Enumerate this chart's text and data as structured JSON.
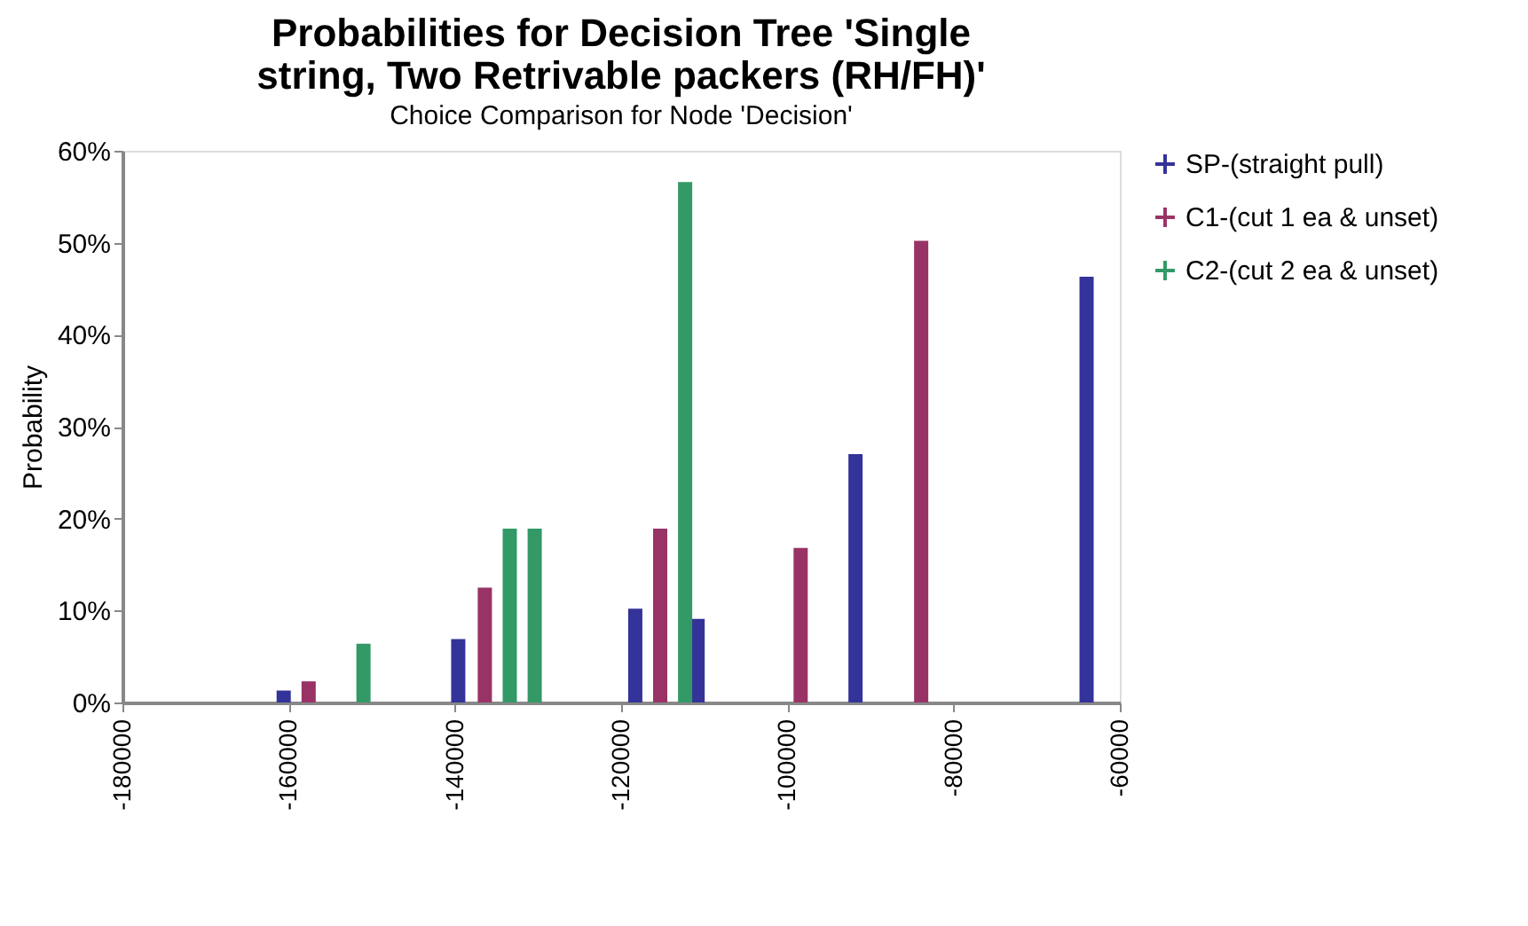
{
  "chart_data": {
    "type": "bar",
    "title": "Probabilities for Decision Tree 'Single string, Two Retrivable packers (RH/FH)'",
    "subtitle": "Choice Comparison for Node 'Decision'",
    "ylabel": "Probability",
    "xlim": [
      -180000,
      -60000
    ],
    "xticks": [
      -180000,
      -160000,
      -140000,
      -120000,
      -100000,
      -80000,
      -60000
    ],
    "ylim": [
      0,
      60
    ],
    "yticks": [
      {
        "value": 0,
        "label": "0%"
      },
      {
        "value": 10,
        "label": "10%"
      },
      {
        "value": 20,
        "label": "20%"
      },
      {
        "value": 30,
        "label": "30%"
      },
      {
        "value": 40,
        "label": "40%"
      },
      {
        "value": 50,
        "label": "50%"
      },
      {
        "value": 60,
        "label": "60%"
      }
    ],
    "marker": "cross",
    "grid": false,
    "legend": "right",
    "series": [
      {
        "name": "SP-(straight pull)",
        "color": "#333399",
        "x": [
          -160600,
          -139600,
          -118300,
          -110800,
          -91800,
          -64000
        ],
        "values": [
          1.3,
          6.9,
          10.2,
          9.1,
          27.0,
          46.3
        ]
      },
      {
        "name": "C1-(cut 1 ea & unset)",
        "color": "#993366",
        "x": [
          -157600,
          -136400,
          -115300,
          -98400,
          -83900
        ],
        "values": [
          2.3,
          12.5,
          18.9,
          16.8,
          50.2
        ]
      },
      {
        "name": "C2-(cut 2 ea & unset)",
        "color": "#339966",
        "x": [
          -151000,
          -133400,
          -130400,
          -112300
        ],
        "values": [
          6.4,
          18.9,
          18.9,
          56.6
        ]
      }
    ]
  }
}
